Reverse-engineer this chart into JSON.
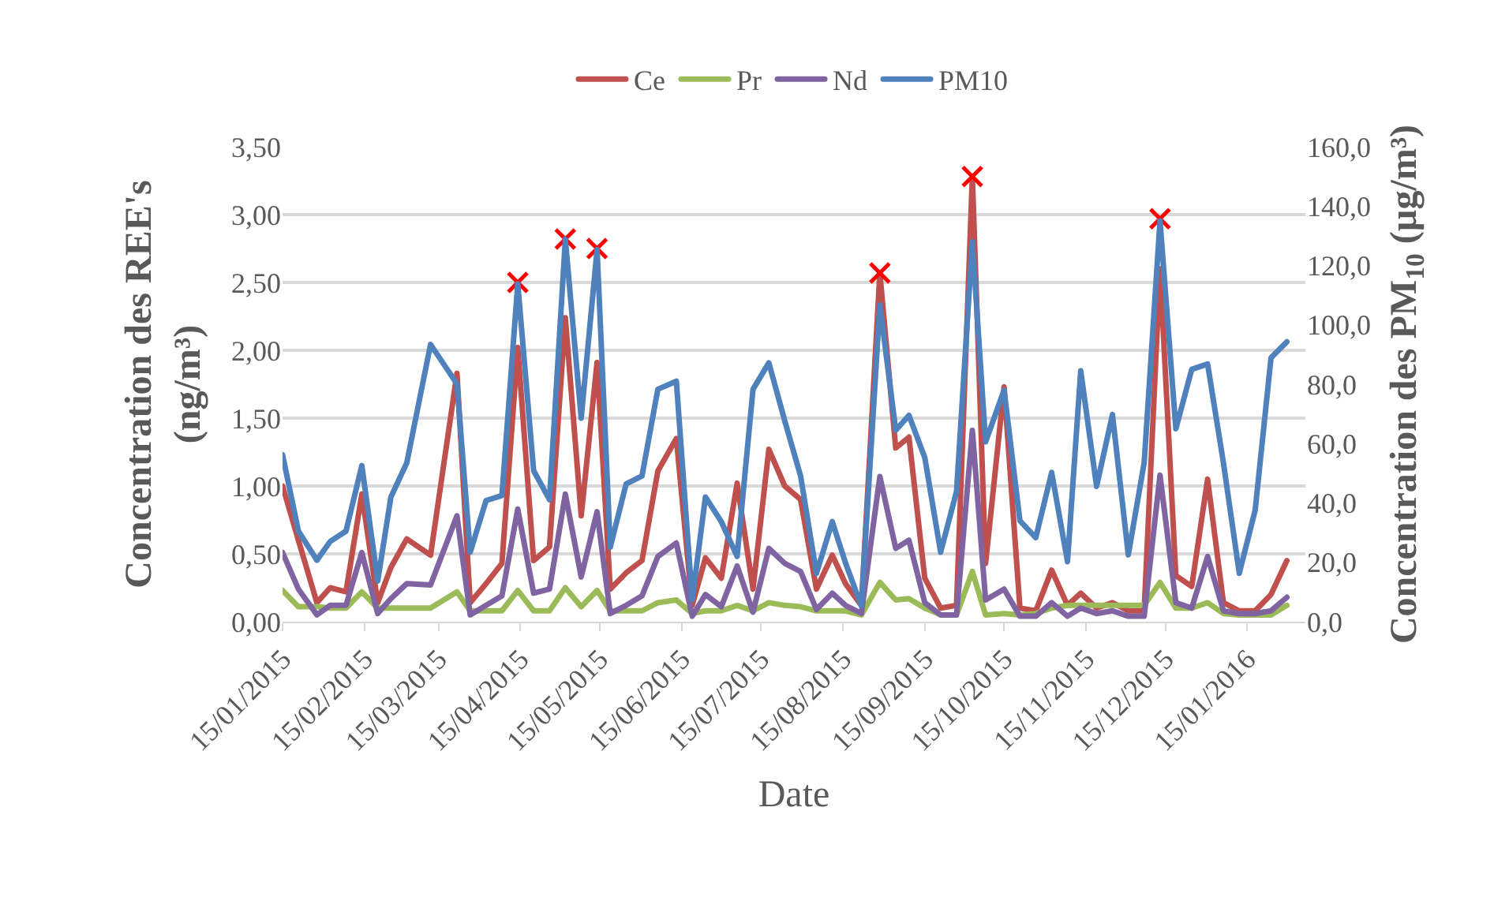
{
  "chart_data": {
    "type": "line",
    "x": [
      "2015-01-15",
      "2015-01-21",
      "2015-01-28",
      "2015-02-02",
      "2015-02-08",
      "2015-02-14",
      "2015-02-20",
      "2015-02-25",
      "2015-03-03",
      "2015-03-12",
      "2015-03-22",
      "2015-03-27",
      "2015-04-02",
      "2015-04-08",
      "2015-04-14",
      "2015-04-20",
      "2015-04-26",
      "2015-05-02",
      "2015-05-08",
      "2015-05-14",
      "2015-05-19",
      "2015-05-25",
      "2015-05-31",
      "2015-06-06",
      "2015-06-13",
      "2015-06-19",
      "2015-06-24",
      "2015-06-30",
      "2015-07-06",
      "2015-07-12",
      "2015-07-18",
      "2015-07-24",
      "2015-07-30",
      "2015-08-05",
      "2015-08-11",
      "2015-08-16",
      "2015-08-22",
      "2015-08-29",
      "2015-09-04",
      "2015-09-09",
      "2015-09-15",
      "2015-09-21",
      "2015-09-27",
      "2015-10-03",
      "2015-10-08",
      "2015-10-15",
      "2015-10-21",
      "2015-10-27",
      "2015-11-02",
      "2015-11-08",
      "2015-11-13",
      "2015-11-19",
      "2015-11-25",
      "2015-12-01",
      "2015-12-07",
      "2015-12-13",
      "2015-12-19",
      "2015-12-25",
      "2015-12-31",
      "2016-01-06",
      "2016-01-12",
      "2016-01-18",
      "2016-01-24",
      "2016-01-30"
    ],
    "series": [
      {
        "name": "Ce",
        "color": "#c0504d",
        "values": [
          1.0,
          0.6,
          0.14,
          0.25,
          0.22,
          0.94,
          0.14,
          0.4,
          0.61,
          0.49,
          1.83,
          0.14,
          0.28,
          0.43,
          2.02,
          0.45,
          0.55,
          2.24,
          0.78,
          1.91,
          0.24,
          0.36,
          0.45,
          1.11,
          1.35,
          0.12,
          0.47,
          0.32,
          1.02,
          0.24,
          1.27,
          1.0,
          0.9,
          0.24,
          0.49,
          0.28,
          0.12,
          2.57,
          1.28,
          1.36,
          0.32,
          0.1,
          0.12,
          3.28,
          0.43,
          1.73,
          0.1,
          0.08,
          0.38,
          0.12,
          0.21,
          0.1,
          0.14,
          0.08,
          0.08,
          2.6,
          0.34,
          0.26,
          1.05,
          0.14,
          0.08,
          0.08,
          0.2,
          0.45
        ]
      },
      {
        "name": "Pr",
        "color": "#9bbb59",
        "values": [
          0.23,
          0.11,
          0.11,
          0.1,
          0.1,
          0.22,
          0.1,
          0.1,
          0.1,
          0.1,
          0.22,
          0.08,
          0.08,
          0.08,
          0.23,
          0.08,
          0.08,
          0.25,
          0.11,
          0.23,
          0.08,
          0.08,
          0.08,
          0.14,
          0.16,
          0.06,
          0.08,
          0.08,
          0.12,
          0.08,
          0.14,
          0.12,
          0.11,
          0.08,
          0.08,
          0.08,
          0.05,
          0.29,
          0.16,
          0.17,
          0.1,
          0.05,
          0.05,
          0.37,
          0.05,
          0.06,
          0.05,
          0.06,
          0.1,
          0.12,
          0.12,
          0.12,
          0.12,
          0.12,
          0.12,
          0.29,
          0.1,
          0.1,
          0.14,
          0.06,
          0.05,
          0.05,
          0.05,
          0.12
        ]
      },
      {
        "name": "Nd",
        "color": "#8064a2",
        "values": [
          0.51,
          0.24,
          0.05,
          0.12,
          0.12,
          0.51,
          0.06,
          0.17,
          0.28,
          0.27,
          0.78,
          0.05,
          0.12,
          0.19,
          0.83,
          0.21,
          0.24,
          0.94,
          0.33,
          0.81,
          0.06,
          0.12,
          0.19,
          0.48,
          0.58,
          0.04,
          0.2,
          0.11,
          0.41,
          0.07,
          0.54,
          0.43,
          0.37,
          0.09,
          0.21,
          0.12,
          0.06,
          1.07,
          0.54,
          0.6,
          0.14,
          0.05,
          0.05,
          1.41,
          0.16,
          0.24,
          0.04,
          0.04,
          0.14,
          0.04,
          0.1,
          0.06,
          0.08,
          0.04,
          0.04,
          1.08,
          0.14,
          0.1,
          0.48,
          0.08,
          0.06,
          0.06,
          0.08,
          0.18
        ]
      },
      {
        "name": "PM10",
        "color": "#4f81bd",
        "axis": "y2",
        "values": [
          56.2,
          30.5,
          20.7,
          27.0,
          30.5,
          52.6,
          13.7,
          42.0,
          53.5,
          93.4,
          80.1,
          23.4,
          40.8,
          42.5,
          113.8,
          50.9,
          41.1,
          128.8,
          68.6,
          125.3,
          25.1,
          46.4,
          49.1,
          78.3,
          81.0,
          7.4,
          42.0,
          33.7,
          22.0,
          78.3,
          87.2,
          67.7,
          49.1,
          16.3,
          33.7,
          19.8,
          5.3,
          106.7,
          64.5,
          69.5,
          55.3,
          23.4,
          43.8,
          128.0,
          60.6,
          78.0,
          34.0,
          28.3,
          50.3,
          20.2,
          84.5,
          45.6,
          69.8,
          22.5,
          53.5,
          135.0,
          65.0,
          85.0,
          86.8,
          53.5,
          16.3,
          37.6,
          88.9,
          94.3
        ]
      },
      {
        "type": "scatter",
        "marker": "cross",
        "color": "#ff0000",
        "x": [
          "2015-04-14",
          "2015-05-02",
          "2015-05-14",
          "2015-08-29",
          "2015-10-03",
          "2015-12-13"
        ],
        "values": [
          2.5,
          2.82,
          2.75,
          2.57,
          3.28,
          2.97
        ]
      }
    ],
    "xlabel": "Date",
    "ylabel": "Concentration des REE's\n(ng/m³)",
    "y2label": "Concentration des PM$_{10}$ (µg/m³)",
    "xlim": [
      "2015-01-15",
      "2016-02-06"
    ],
    "xticks": [
      {
        "value": "2015-01-15",
        "label": "15/01/2015"
      },
      {
        "value": "2015-02-15",
        "label": "15/02/2015"
      },
      {
        "value": "2015-03-15",
        "label": "15/03/2015"
      },
      {
        "value": "2015-04-15",
        "label": "15/04/2015"
      },
      {
        "value": "2015-05-15",
        "label": "15/05/2015"
      },
      {
        "value": "2015-06-15",
        "label": "15/06/2015"
      },
      {
        "value": "2015-07-15",
        "label": "15/07/2015"
      },
      {
        "value": "2015-08-15",
        "label": "15/08/2015"
      },
      {
        "value": "2015-09-15",
        "label": "15/09/2015"
      },
      {
        "value": "2015-10-15",
        "label": "15/10/2015"
      },
      {
        "value": "2015-11-15",
        "label": "15/11/2015"
      },
      {
        "value": "2015-12-15",
        "label": "15/12/2015"
      },
      {
        "value": "2016-01-15",
        "label": "15/01/2016"
      }
    ],
    "ylim": [
      0,
      3.5
    ],
    "yticks": [
      {
        "value": 0,
        "label": "0,00"
      },
      {
        "value": 0.5,
        "label": "0,50"
      },
      {
        "value": 1,
        "label": "1,00"
      },
      {
        "value": 1.5,
        "label": "1,50"
      },
      {
        "value": 2,
        "label": "2,00"
      },
      {
        "value": 2.5,
        "label": "2,50"
      },
      {
        "value": 3,
        "label": "3,00"
      },
      {
        "value": 3.5,
        "label": "3,50"
      }
    ],
    "y2lim": [
      0,
      160
    ],
    "y2ticks": [
      {
        "value": 0,
        "label": "0,0"
      },
      {
        "value": 20,
        "label": "20,0"
      },
      {
        "value": 40,
        "label": "40,0"
      },
      {
        "value": 60,
        "label": "60,0"
      },
      {
        "value": 80,
        "label": "80,0"
      },
      {
        "value": 100,
        "label": "100,0"
      },
      {
        "value": 120,
        "label": "120,0"
      },
      {
        "value": 140,
        "label": "140,0"
      },
      {
        "value": 160,
        "label": "160,0"
      }
    ],
    "grid": "y",
    "legend": "top",
    "marker": "none",
    "line_style": "solid"
  }
}
